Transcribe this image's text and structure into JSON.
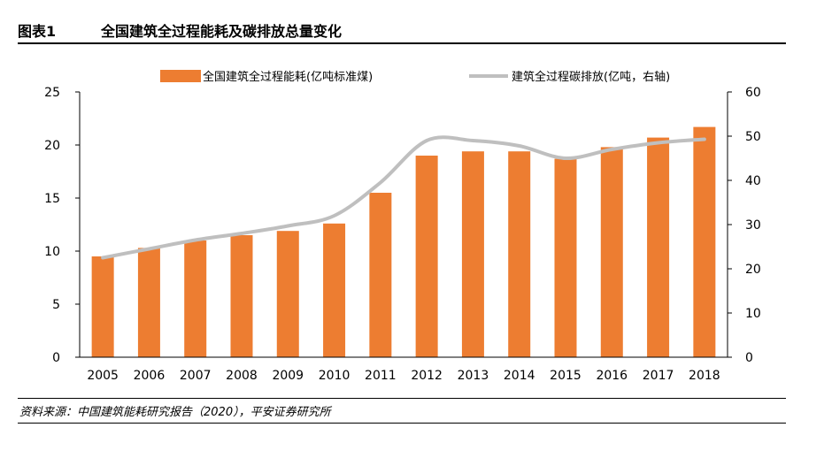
{
  "figure": {
    "label": "图表1",
    "title": "全国建筑全过程能耗及碳排放总量变化",
    "source": "资料来源：中国建筑能耗研究报告（2020），平安证券研究所"
  },
  "chart_data": {
    "type": "bar",
    "categories": [
      "2005",
      "2006",
      "2007",
      "2008",
      "2009",
      "2010",
      "2011",
      "2012",
      "2013",
      "2014",
      "2015",
      "2016",
      "2017",
      "2018"
    ],
    "series": [
      {
        "name": "全国建筑全过程能耗(亿吨标准煤)",
        "type": "bar",
        "axis": "left",
        "color": "#ED7D31",
        "values": [
          9.5,
          10.3,
          11.0,
          11.5,
          11.9,
          12.6,
          15.5,
          19.0,
          19.4,
          19.4,
          18.7,
          19.8,
          20.7,
          21.7
        ]
      },
      {
        "name": "建筑全过程碳排放(亿吨，右轴)",
        "type": "line",
        "axis": "right",
        "color": "#BFBFBF",
        "values": [
          22.5,
          24.5,
          26.5,
          28.0,
          29.7,
          32.0,
          39.5,
          49.0,
          49.0,
          47.8,
          45.0,
          47.0,
          48.5,
          49.3
        ]
      }
    ],
    "y_left": {
      "ylim": [
        0,
        25
      ],
      "ticks": [
        0,
        5,
        10,
        15,
        20,
        25
      ]
    },
    "y_right": {
      "ylim": [
        0,
        60
      ],
      "ticks": [
        0,
        10,
        20,
        30,
        40,
        50,
        60
      ]
    },
    "legend_position": "top-center",
    "grid": false
  }
}
